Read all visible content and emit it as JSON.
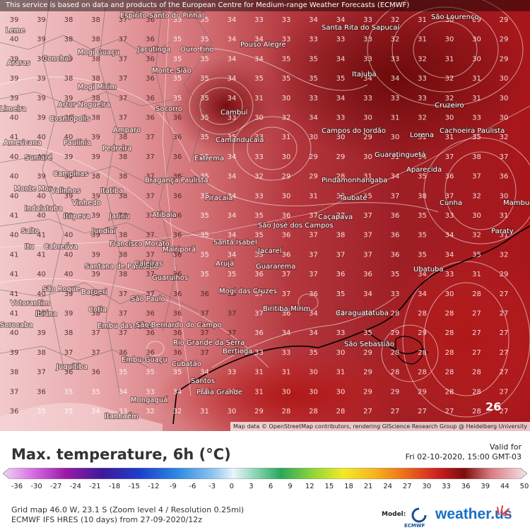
{
  "notice": "This service is based on data and products of the European Centre for Medium-range Weather Forecasts (ECMWF)",
  "attribution": "Map data © OpenStreetMap contributors, rendering GIScience Research Group @ Heidelberg University",
  "forecast_day": "26",
  "title": "Max. temperature, 6h (°C)",
  "valid_label": "Valid for",
  "valid_time": "Fri 02-10-2020, 15:00 GMT-03",
  "colorbar_ticks": [
    "-36",
    "-30",
    "-27",
    "-24",
    "-21",
    "-18",
    "-15",
    "-12",
    "-9",
    "-6",
    "-3",
    "0",
    "3",
    "6",
    "9",
    "12",
    "15",
    "18",
    "21",
    "24",
    "27",
    "30",
    "33",
    "36",
    "39",
    "44",
    "50"
  ],
  "grid_info": "Grid map 46.0 W, 23.1 S (Zoom level 4 / Resolution 0.25mi)",
  "run_info": "ECMWF IFS HRES (10 days) from 27-09-2020/12z",
  "model_label": "Model:",
  "ecmwf_label": "ECMWF",
  "brand": "weather.us",
  "cities": [
    {
      "name": "Espírito Santo do Pinhal"
    },
    {
      "name": "São Lourenço"
    },
    {
      "name": "Leme"
    },
    {
      "name": "Jacutinga"
    },
    {
      "name": "Ouro Fino"
    },
    {
      "name": "Santa Rita do Sapucaí"
    },
    {
      "name": "Pouso Alegre"
    },
    {
      "name": "Araras"
    },
    {
      "name": "Conchal"
    },
    {
      "name": "Mogi Guaçu"
    },
    {
      "name": "Monte Sião"
    },
    {
      "name": "Itajubá"
    },
    {
      "name": "Mogi Mirim"
    },
    {
      "name": "Artur Nogueira"
    },
    {
      "name": "Socorro"
    },
    {
      "name": "Cruzeiro"
    },
    {
      "name": "Limeira"
    },
    {
      "name": "Cosmópolis"
    },
    {
      "name": "Cambuí"
    },
    {
      "name": "Lorena"
    },
    {
      "name": "Cachoeira Paulista"
    },
    {
      "name": "Amparo"
    },
    {
      "name": "Paulínia"
    },
    {
      "name": "Campos do Jordão"
    },
    {
      "name": "Americana"
    },
    {
      "name": "Camanducaia"
    },
    {
      "name": "Pedreira"
    },
    {
      "name": "Sumaré"
    },
    {
      "name": "Extrema"
    },
    {
      "name": "Guaratinguetá"
    },
    {
      "name": "Aparecida"
    },
    {
      "name": "Campinas"
    },
    {
      "name": "Pindamonhangaba"
    },
    {
      "name": "Bragança Paulista"
    },
    {
      "name": "Monte Mor"
    },
    {
      "name": "Valinhos"
    },
    {
      "name": "Itatiba"
    },
    {
      "name": "Mambucaba"
    },
    {
      "name": "Vinhedo"
    },
    {
      "name": "Piracaia"
    },
    {
      "name": "Taubaté"
    },
    {
      "name": "Cunha"
    },
    {
      "name": "Indaiatuba"
    },
    {
      "name": "Itupeva"
    },
    {
      "name": "Jarinu"
    },
    {
      "name": "Atibaia"
    },
    {
      "name": "Caçapava"
    },
    {
      "name": "São José dos Campos"
    },
    {
      "name": "Salto"
    },
    {
      "name": "Jundiaí"
    },
    {
      "name": "Paraty"
    },
    {
      "name": "Itu"
    },
    {
      "name": "Cabreúva"
    },
    {
      "name": "Francisco Morato"
    },
    {
      "name": "Santa Isabel"
    },
    {
      "name": "Mairiporã"
    },
    {
      "name": "Jacareí"
    },
    {
      "name": "Santana de Parnaíba"
    },
    {
      "name": "Caieiras"
    },
    {
      "name": "Arujá"
    },
    {
      "name": "Guararema"
    },
    {
      "name": "Ubatuba"
    },
    {
      "name": "Guarulhos"
    },
    {
      "name": "São Roque"
    },
    {
      "name": "Barueri"
    },
    {
      "name": "Mogi das Cruzes"
    },
    {
      "name": "São Paulo"
    },
    {
      "name": "Votorantim"
    },
    {
      "name": "Biritiba-Mirim"
    },
    {
      "name": "Caraguatatuba"
    },
    {
      "name": "Ibiúna"
    },
    {
      "name": "Cotia"
    },
    {
      "name": "Embu das Artes"
    },
    {
      "name": "São Bernardo do Campo"
    },
    {
      "name": "Sorocaba"
    },
    {
      "name": "São Sebastião"
    },
    {
      "name": "Rio Grande da Serra"
    },
    {
      "name": "Bertioga"
    },
    {
      "name": "Juquitiba"
    },
    {
      "name": "Embu-Guaçu"
    },
    {
      "name": "Cubatão"
    },
    {
      "name": "Santos"
    },
    {
      "name": "Praia Grande"
    },
    {
      "name": "Mongaguá"
    },
    {
      "name": "Itanhaém"
    }
  ],
  "temperature_values": [
    "39",
    "39",
    "38",
    "38",
    "37",
    "36",
    "35",
    "35",
    "34",
    "33",
    "33",
    "34",
    "34",
    "33",
    "32",
    "31",
    "30",
    "29",
    "29",
    "40",
    "39",
    "38",
    "38",
    "37",
    "36",
    "35",
    "35",
    "34",
    "34",
    "33",
    "33",
    "33",
    "33",
    "32",
    "31",
    "30",
    "30",
    "29",
    "39",
    "39",
    "39",
    "38",
    "37",
    "36",
    "35",
    "35",
    "34",
    "34",
    "35",
    "35",
    "34",
    "33",
    "33",
    "32",
    "31",
    "30",
    "29",
    "39",
    "39",
    "38",
    "38",
    "37",
    "36",
    "35",
    "35",
    "34",
    "35",
    "35",
    "35",
    "35",
    "34",
    "34",
    "33",
    "32",
    "31",
    "30",
    "39",
    "39",
    "39",
    "38",
    "37",
    "36",
    "35",
    "35",
    "34",
    "31",
    "30",
    "33",
    "34",
    "33",
    "33",
    "33",
    "32",
    "31",
    "30",
    "40",
    "39",
    "38",
    "38",
    "37",
    "36",
    "36",
    "35",
    "33",
    "30",
    "32",
    "34",
    "33",
    "30",
    "31",
    "32",
    "30",
    "33",
    "30",
    "41",
    "40",
    "40",
    "39",
    "38",
    "37",
    "36",
    "35",
    "35",
    "33",
    "31",
    "30",
    "30",
    "29",
    "30",
    "31",
    "31",
    "35",
    "32",
    "40",
    "40",
    "39",
    "39",
    "38",
    "37",
    "36",
    "35",
    "34",
    "33",
    "30",
    "29",
    "29",
    "30",
    "31",
    "34",
    "37",
    "38",
    "37",
    "40",
    "39",
    "39",
    "38",
    "38",
    "37",
    "36",
    "35",
    "34",
    "32",
    "29",
    "29",
    "28",
    "31",
    "34",
    "35",
    "36",
    "37",
    "36",
    "40",
    "40",
    "39",
    "39",
    "38",
    "37",
    "36",
    "35",
    "34",
    "33",
    "30",
    "31",
    "33",
    "35",
    "37",
    "38",
    "37",
    "32",
    "30",
    "41",
    "40",
    "40",
    "39",
    "38",
    "37",
    "36",
    "35",
    "34",
    "35",
    "36",
    "37",
    "37",
    "37",
    "36",
    "35",
    "33",
    "30",
    "31",
    "40",
    "41",
    "40",
    "39",
    "38",
    "37",
    "36",
    "35",
    "34",
    "35",
    "36",
    "37",
    "38",
    "37",
    "36",
    "35",
    "34",
    "32",
    "31",
    "41",
    "41",
    "40",
    "39",
    "38",
    "37",
    "36",
    "35",
    "34",
    "35",
    "36",
    "37",
    "37",
    "37",
    "36",
    "35",
    "34",
    "35",
    "32",
    "41",
    "40",
    "40",
    "39",
    "38",
    "37",
    "36",
    "35",
    "35",
    "36",
    "37",
    "37",
    "36",
    "36",
    "35",
    "34",
    "33",
    "31",
    "29",
    "41",
    "40",
    "39",
    "38",
    "37",
    "37",
    "36",
    "36",
    "36",
    "37",
    "37",
    "36",
    "35",
    "34",
    "33",
    "34",
    "30",
    "28",
    "27",
    "41",
    "40",
    "39",
    "38",
    "37",
    "36",
    "36",
    "37",
    "37",
    "37",
    "36",
    "34",
    "32",
    "30",
    "28",
    "28",
    "28",
    "27",
    "27",
    "40",
    "39",
    "38",
    "37",
    "37",
    "36",
    "36",
    "37",
    "37",
    "36",
    "34",
    "34",
    "33",
    "35",
    "29",
    "29",
    "28",
    "27",
    "27",
    "39",
    "38",
    "37",
    "37",
    "36",
    "36",
    "36",
    "37",
    "36",
    "33",
    "33",
    "35",
    "30",
    "29",
    "28",
    "28",
    "28",
    "27",
    "27",
    "38",
    "37",
    "36",
    "36",
    "35",
    "35",
    "35",
    "34",
    "33",
    "31",
    "31",
    "30",
    "31",
    "29",
    "28",
    "28",
    "28",
    "28",
    "27",
    "37",
    "36",
    "35",
    "35",
    "34",
    "33",
    "34",
    "33",
    "31",
    "31",
    "30",
    "30",
    "30",
    "29",
    "29",
    "29",
    "28",
    "28",
    "27",
    "36",
    "35",
    "35",
    "34",
    "33",
    "32",
    "32",
    "31",
    "30",
    "29",
    "28",
    "28",
    "28",
    "27",
    "27",
    "27",
    "27",
    "28",
    "27"
  ],
  "colors": {
    "background_hot": "#8b0f0f",
    "background_warm": "#c9444a",
    "background_mild": "#e79b9e",
    "coastline": "#000000",
    "border": "#555555",
    "isotherm": "#ffffff",
    "title": "#333333",
    "brand": "#1a6fc4"
  }
}
